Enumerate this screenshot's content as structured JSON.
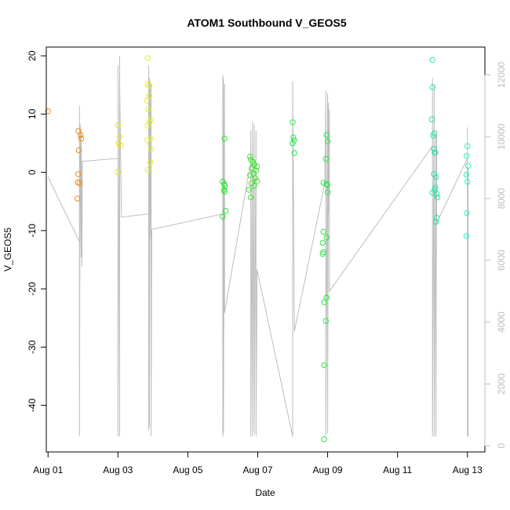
{
  "chart_data": {
    "type": "scatter",
    "title": "ATOM1 Southbound V_GEOS5",
    "xlabel": "Date",
    "ylabel": "V_GEOS5",
    "x_ticks": [
      {
        "day": 1,
        "label": "Aug 01"
      },
      {
        "day": 3,
        "label": "Aug 03"
      },
      {
        "day": 5,
        "label": "Aug 05"
      },
      {
        "day": 7,
        "label": "Aug 07"
      },
      {
        "day": 9,
        "label": "Aug 09"
      },
      {
        "day": 11,
        "label": "Aug 11"
      },
      {
        "day": 13,
        "label": "Aug 13"
      }
    ],
    "xlim": [
      0.95,
      13.5
    ],
    "ylim": [
      -48.0,
      21.5
    ],
    "y_ticks": [
      -40,
      -30,
      -20,
      -10,
      0,
      10,
      20
    ],
    "right_axis": {
      "ylim": [
        -200,
        12900
      ],
      "ticks": [
        0,
        2000,
        4000,
        6000,
        8000,
        10000,
        12000
      ],
      "color": "#bdbdbd"
    },
    "grid": false,
    "points": [
      {
        "x": 1.0,
        "y": 10.5,
        "color": "#f08a1a"
      },
      {
        "x": 1.87,
        "y": 7.1,
        "color": "#f08a1a"
      },
      {
        "x": 1.93,
        "y": 6.4,
        "color": "#f08a1a"
      },
      {
        "x": 1.95,
        "y": 5.8,
        "color": "#f08a1a"
      },
      {
        "x": 1.88,
        "y": 3.8,
        "color": "#f08a1a"
      },
      {
        "x": 1.86,
        "y": -0.3,
        "color": "#f08a1a"
      },
      {
        "x": 1.85,
        "y": -1.7,
        "color": "#f08a1a"
      },
      {
        "x": 1.9,
        "y": -1.9,
        "color": "#f08a1a"
      },
      {
        "x": 1.84,
        "y": -4.5,
        "color": "#f08a1a"
      },
      {
        "x": 3.0,
        "y": 8.1,
        "color": "#e0e628"
      },
      {
        "x": 3.05,
        "y": 6.1,
        "color": "#e0e628"
      },
      {
        "x": 3.02,
        "y": 5.0,
        "color": "#e0e628"
      },
      {
        "x": 3.08,
        "y": 4.6,
        "color": "#e0e628"
      },
      {
        "x": 3.0,
        "y": 0.1,
        "color": "#e0e628"
      },
      {
        "x": 3.85,
        "y": 19.6,
        "color": "#e0f020"
      },
      {
        "x": 3.85,
        "y": 15.1,
        "color": "#e0f020"
      },
      {
        "x": 3.9,
        "y": 14.9,
        "color": "#e0f020"
      },
      {
        "x": 3.9,
        "y": 13.2,
        "color": "#e0f020"
      },
      {
        "x": 3.83,
        "y": 12.3,
        "color": "#e0f020"
      },
      {
        "x": 3.87,
        "y": 10.8,
        "color": "#e0f020"
      },
      {
        "x": 3.95,
        "y": 9.1,
        "color": "#e0f020"
      },
      {
        "x": 3.9,
        "y": 8.6,
        "color": "#e0f020"
      },
      {
        "x": 3.85,
        "y": 8.0,
        "color": "#e0f020"
      },
      {
        "x": 3.95,
        "y": 5.8,
        "color": "#e0f020"
      },
      {
        "x": 3.85,
        "y": 5.5,
        "color": "#e0f020"
      },
      {
        "x": 3.95,
        "y": 4.0,
        "color": "#e0f020"
      },
      {
        "x": 3.93,
        "y": 1.7,
        "color": "#e0f020"
      },
      {
        "x": 3.85,
        "y": 0.4,
        "color": "#e0f020"
      },
      {
        "x": 6.05,
        "y": 5.8,
        "color": "#2ee632"
      },
      {
        "x": 6.0,
        "y": -1.6,
        "color": "#2ee632"
      },
      {
        "x": 6.04,
        "y": -2.0,
        "color": "#2ee632"
      },
      {
        "x": 6.06,
        "y": -2.3,
        "color": "#2ee632"
      },
      {
        "x": 6.03,
        "y": -3.0,
        "color": "#2ee632"
      },
      {
        "x": 6.05,
        "y": -3.3,
        "color": "#2ee632"
      },
      {
        "x": 6.08,
        "y": -6.6,
        "color": "#2ee632"
      },
      {
        "x": 6.0,
        "y": -7.6,
        "color": "#2ee632"
      },
      {
        "x": 6.78,
        "y": 2.7,
        "color": "#3be630"
      },
      {
        "x": 6.8,
        "y": 2.2,
        "color": "#3be630"
      },
      {
        "x": 6.86,
        "y": 1.8,
        "color": "#3be630"
      },
      {
        "x": 6.9,
        "y": 1.3,
        "color": "#3be630"
      },
      {
        "x": 6.98,
        "y": 1.0,
        "color": "#3be630"
      },
      {
        "x": 6.83,
        "y": 0.7,
        "color": "#3be630"
      },
      {
        "x": 6.95,
        "y": 0.3,
        "color": "#3be630"
      },
      {
        "x": 6.88,
        "y": -0.2,
        "color": "#3be630"
      },
      {
        "x": 6.78,
        "y": -0.5,
        "color": "#3be630"
      },
      {
        "x": 6.93,
        "y": -1.0,
        "color": "#3be630"
      },
      {
        "x": 6.98,
        "y": -1.5,
        "color": "#3be630"
      },
      {
        "x": 6.82,
        "y": -1.9,
        "color": "#3be630"
      },
      {
        "x": 6.9,
        "y": -2.3,
        "color": "#3be630"
      },
      {
        "x": 6.75,
        "y": -3.0,
        "color": "#3be630"
      },
      {
        "x": 6.8,
        "y": -4.3,
        "color": "#3be630"
      },
      {
        "x": 8.0,
        "y": 8.6,
        "color": "#28e84a"
      },
      {
        "x": 8.02,
        "y": 6.0,
        "color": "#28e84a"
      },
      {
        "x": 8.04,
        "y": 5.5,
        "color": "#28e84a"
      },
      {
        "x": 8.0,
        "y": 5.0,
        "color": "#28e84a"
      },
      {
        "x": 8.05,
        "y": 3.3,
        "color": "#28e84a"
      },
      {
        "x": 8.97,
        "y": 6.4,
        "color": "#28e84a"
      },
      {
        "x": 9.0,
        "y": 5.3,
        "color": "#28e84a"
      },
      {
        "x": 8.95,
        "y": 2.3,
        "color": "#28e84a"
      },
      {
        "x": 8.88,
        "y": -1.8,
        "color": "#28e84a"
      },
      {
        "x": 8.97,
        "y": -2.0,
        "color": "#28e84a"
      },
      {
        "x": 8.99,
        "y": -2.2,
        "color": "#28e84a"
      },
      {
        "x": 9.0,
        "y": -3.4,
        "color": "#28e84a"
      },
      {
        "x": 8.88,
        "y": -10.2,
        "color": "#28e84a"
      },
      {
        "x": 8.97,
        "y": -11.2,
        "color": "#28e84a"
      },
      {
        "x": 8.86,
        "y": -12.1,
        "color": "#28e84a"
      },
      {
        "x": 8.88,
        "y": -13.7,
        "color": "#28e84a"
      },
      {
        "x": 8.86,
        "y": -14.0,
        "color": "#28e84a"
      },
      {
        "x": 8.97,
        "y": -21.5,
        "color": "#28e84a"
      },
      {
        "x": 8.9,
        "y": -22.3,
        "color": "#28e84a"
      },
      {
        "x": 8.95,
        "y": -25.5,
        "color": "#28e84a"
      },
      {
        "x": 8.9,
        "y": -33.1,
        "color": "#28e84a"
      },
      {
        "x": 8.9,
        "y": -45.8,
        "color": "#28e84a"
      },
      {
        "x": 12.0,
        "y": 19.3,
        "color": "#28e8a0"
      },
      {
        "x": 12.0,
        "y": 14.6,
        "color": "#28e8a0"
      },
      {
        "x": 11.98,
        "y": 9.1,
        "color": "#28e8a0"
      },
      {
        "x": 12.05,
        "y": 6.7,
        "color": "#28e8a0"
      },
      {
        "x": 12.02,
        "y": 6.3,
        "color": "#28e8a0"
      },
      {
        "x": 12.04,
        "y": 4.0,
        "color": "#28e8a0"
      },
      {
        "x": 12.06,
        "y": 3.4,
        "color": "#28e8a0"
      },
      {
        "x": 12.08,
        "y": 3.4,
        "color": "#28e8a0"
      },
      {
        "x": 12.04,
        "y": -0.3,
        "color": "#28e8a0"
      },
      {
        "x": 12.1,
        "y": -0.8,
        "color": "#28e8a0"
      },
      {
        "x": 12.08,
        "y": -2.6,
        "color": "#28e8a0"
      },
      {
        "x": 12.06,
        "y": -3.0,
        "color": "#28e8a0"
      },
      {
        "x": 12.0,
        "y": -3.5,
        "color": "#28e8a0"
      },
      {
        "x": 12.12,
        "y": -3.7,
        "color": "#28e8a0"
      },
      {
        "x": 12.14,
        "y": -4.3,
        "color": "#28e8a0"
      },
      {
        "x": 12.12,
        "y": -7.8,
        "color": "#28e8a0"
      },
      {
        "x": 12.1,
        "y": -8.5,
        "color": "#28e8a0"
      },
      {
        "x": 13.0,
        "y": 4.5,
        "color": "#2ef2c0"
      },
      {
        "x": 12.98,
        "y": 2.8,
        "color": "#2ef2c0"
      },
      {
        "x": 13.02,
        "y": 1.1,
        "color": "#2ef2c0"
      },
      {
        "x": 12.97,
        "y": -0.4,
        "color": "#2ef2c0"
      },
      {
        "x": 13.0,
        "y": -1.6,
        "color": "#2ef2c0"
      },
      {
        "x": 12.98,
        "y": -7.0,
        "color": "#2ef2c0"
      },
      {
        "x": 12.97,
        "y": -10.9,
        "color": "#2ef2c0"
      }
    ],
    "secondary_series": {
      "axis": "right",
      "style": "line",
      "color": "#bdbdbd",
      "points": [
        [
          1.0,
          8700
        ],
        [
          1.9,
          6600
        ],
        [
          1.9,
          11000
        ],
        [
          1.9,
          300
        ],
        [
          1.92,
          10400
        ],
        [
          1.95,
          6100
        ],
        [
          1.95,
          10200
        ],
        [
          1.97,
          5800
        ],
        [
          1.98,
          9200
        ],
        [
          3.0,
          9300
        ],
        [
          3.0,
          12300
        ],
        [
          3.0,
          300
        ],
        [
          3.05,
          12600
        ],
        [
          3.05,
          300
        ],
        [
          3.05,
          11800
        ],
        [
          3.1,
          7400
        ],
        [
          3.88,
          7500
        ],
        [
          3.88,
          12300
        ],
        [
          3.88,
          500
        ],
        [
          3.9,
          11900
        ],
        [
          3.9,
          600
        ],
        [
          3.92,
          11800
        ],
        [
          3.94,
          6700
        ],
        [
          3.95,
          11700
        ],
        [
          3.95,
          300
        ],
        [
          3.97,
          7000
        ],
        [
          6.0,
          7500
        ],
        [
          6.0,
          12000
        ],
        [
          6.0,
          300
        ],
        [
          6.02,
          11900
        ],
        [
          6.02,
          400
        ],
        [
          6.05,
          11700
        ],
        [
          6.05,
          4300
        ],
        [
          6.8,
          9200
        ],
        [
          6.8,
          10200
        ],
        [
          6.8,
          300
        ],
        [
          6.85,
          10500
        ],
        [
          6.85,
          300
        ],
        [
          6.9,
          10400
        ],
        [
          6.9,
          400
        ],
        [
          6.95,
          10200
        ],
        [
          6.95,
          300
        ],
        [
          6.98,
          5700
        ],
        [
          8.0,
          300
        ],
        [
          8.0,
          11800
        ],
        [
          8.05,
          3700
        ],
        [
          8.92,
          8500
        ],
        [
          8.95,
          11500
        ],
        [
          8.95,
          300
        ],
        [
          9.0,
          11400
        ],
        [
          9.0,
          400
        ],
        [
          9.02,
          11100
        ],
        [
          9.02,
          7500
        ],
        [
          9.05,
          10900
        ],
        [
          9.05,
          5000
        ],
        [
          12.0,
          9700
        ],
        [
          12.0,
          11900
        ],
        [
          12.0,
          300
        ],
        [
          12.05,
          11700
        ],
        [
          12.05,
          300
        ],
        [
          12.1,
          10000
        ],
        [
          12.1,
          300
        ],
        [
          12.12,
          10200
        ],
        [
          12.12,
          7200
        ],
        [
          13.0,
          9300
        ],
        [
          13.0,
          10300
        ],
        [
          13.0,
          4000
        ],
        [
          13.0,
          300
        ],
        [
          13.02,
          9000
        ],
        [
          13.02,
          300
        ]
      ]
    }
  }
}
